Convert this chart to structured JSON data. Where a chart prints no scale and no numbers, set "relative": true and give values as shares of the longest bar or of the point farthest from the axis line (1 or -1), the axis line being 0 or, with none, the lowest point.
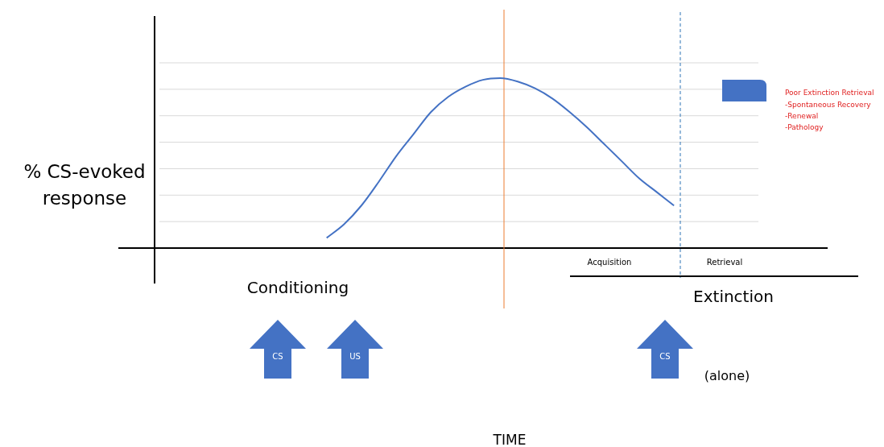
{
  "chart_data": {
    "type": "line",
    "relative": true,
    "ylabel": "% CS-evoked response",
    "grid": "y",
    "marker": "none",
    "line_style": "solid",
    "legend": false,
    "categories": [
      null,
      null,
      null,
      null,
      null,
      null,
      null,
      null,
      null,
      null,
      null,
      null,
      null,
      null,
      null,
      null,
      null,
      null,
      null,
      null,
      null,
      null,
      null,
      null,
      null,
      null,
      null,
      null,
      null,
      null,
      null,
      null,
      null,
      null,
      null,
      null
    ],
    "series": [
      {
        "color": "#4472c4",
        "values": [
          null,
          null,
          null,
          null,
          null,
          null,
          null,
          null,
          null,
          null,
          0.06,
          0.14,
          0.25,
          0.39,
          0.54,
          0.67,
          0.8,
          0.89,
          0.95,
          0.99,
          1,
          0.98,
          0.94,
          0.88,
          0.8,
          0.71,
          0.61,
          0.51,
          0.41,
          0.33,
          0.25,
          null,
          null,
          null,
          null,
          null
        ]
      }
    ],
    "annotations": [
      "Conditioning",
      "Extinction",
      "Acquisition",
      "Retrieval",
      "(alone)",
      "CS",
      "US",
      "CS",
      "Poor Extinction Retrieval",
      "-Spontaneous Recovery",
      "-Renewal",
      "-Pathology",
      "TIME"
    ]
  }
}
